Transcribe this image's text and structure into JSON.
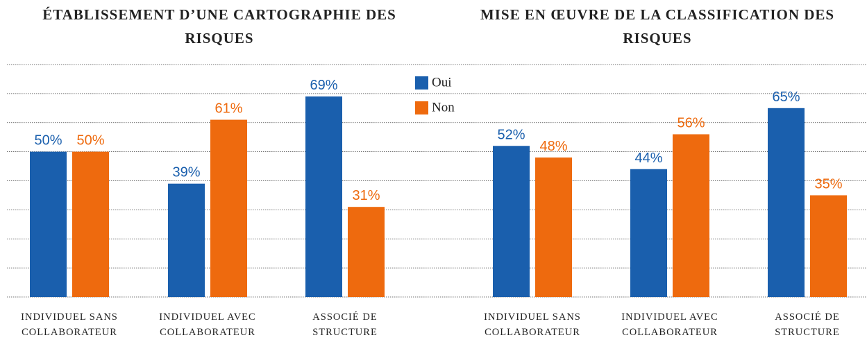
{
  "chart_data": [
    {
      "type": "bar",
      "title": "ÉTABLISSEMENT D’UNE CARTOGRAPHIE DES RISQUES",
      "categories": [
        "INDIVIDUEL SANS COLLABORATEUR",
        "INDIVIDUEL AVEC COLLABORATEUR",
        "ASSOCIÉ DE STRUCTURE"
      ],
      "series": [
        {
          "name": "Oui",
          "color": "#1a5fad",
          "values": [
            50,
            39,
            69
          ],
          "value_labels": [
            "50%",
            "39%",
            "69%"
          ]
        },
        {
          "name": "Non",
          "color": "#ee6a0e",
          "values": [
            50,
            61,
            31
          ],
          "value_labels": [
            "50%",
            "61%",
            "31%"
          ]
        }
      ],
      "ylim": [
        0,
        80
      ],
      "yticks": [
        0,
        10,
        20,
        30,
        40,
        50,
        60,
        70,
        80
      ],
      "grid": true
    },
    {
      "type": "bar",
      "title": "MISE EN ŒUVRE DE LA CLASSIFICATION DES RISQUES",
      "categories": [
        "INDIVIDUEL SANS COLLABORATEUR",
        "INDIVIDUEL AVEC COLLABORATEUR",
        "ASSOCIÉ DE STRUCTURE"
      ],
      "series": [
        {
          "name": "Oui",
          "color": "#1a5fad",
          "values": [
            52,
            44,
            65
          ],
          "value_labels": [
            "52%",
            "44%",
            "65%"
          ]
        },
        {
          "name": "Non",
          "color": "#ee6a0e",
          "values": [
            48,
            56,
            35
          ],
          "value_labels": [
            "48%",
            "56%",
            "35%"
          ]
        }
      ],
      "ylim": [
        0,
        80
      ],
      "yticks": [
        0,
        10,
        20,
        30,
        40,
        50,
        60,
        70,
        80
      ],
      "grid": true
    }
  ]
}
